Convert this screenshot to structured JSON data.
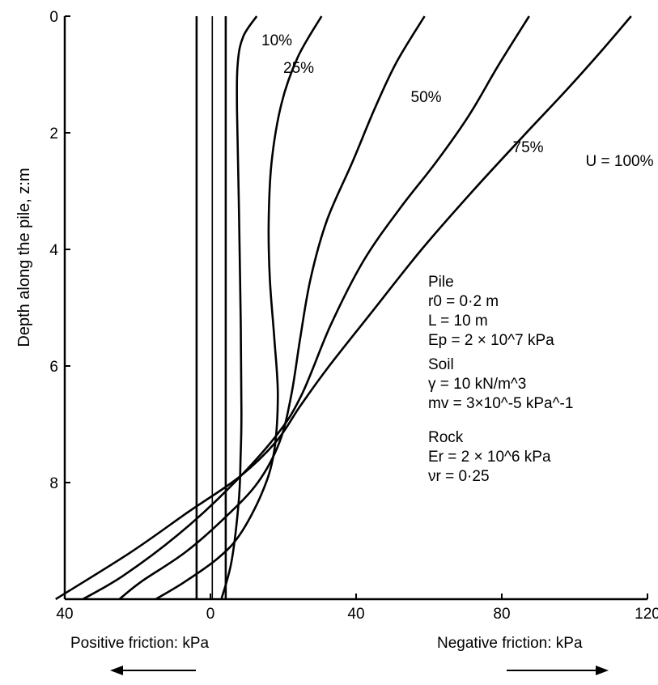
{
  "chart_data": {
    "type": "line",
    "title": "",
    "xlabel_left": "Positive friction: kPa",
    "xlabel_right": "Negative friction: kPa",
    "ylabel": "Depth along the pile, z:m",
    "xlim": [
      -40,
      120
    ],
    "ylim": [
      10,
      0
    ],
    "x_ticks": [
      -40,
      0,
      40,
      80,
      120
    ],
    "x_tick_labels": [
      "40",
      "0",
      "40",
      "80",
      "120"
    ],
    "y_ticks": [
      0,
      2,
      4,
      6,
      8
    ],
    "y_tick_labels": [
      "0",
      "2",
      "4",
      "6",
      "8"
    ],
    "grid": false,
    "series": [
      {
        "name": "10%",
        "label_x": 14,
        "label_y": 0.5,
        "x": [
          12.7,
          9,
          7.5,
          7.3,
          7.8,
          8.3,
          8.5,
          8.3,
          7.8,
          5.8,
          3
        ],
        "y": [
          0,
          0.35,
          0.8,
          1.6,
          3.2,
          5.2,
          6.8,
          7.5,
          8.3,
          9.35,
          10
        ]
      },
      {
        "name": "25%",
        "label_x": 20,
        "label_y": 0.97,
        "x": [
          30.5,
          24,
          19.5,
          16.8,
          16,
          16.3,
          17.5,
          18.5,
          17.4,
          14,
          8,
          2,
          -7,
          -15
        ],
        "y": [
          0,
          0.7,
          1.5,
          2.5,
          3.5,
          4.5,
          5.5,
          6.5,
          7.5,
          8.2,
          8.9,
          9.3,
          9.7,
          10
        ]
      },
      {
        "name": "50%",
        "label_x": 55,
        "label_y": 1.47,
        "x": [
          58.8,
          51,
          45,
          39,
          32,
          27.5,
          24.7,
          22.2,
          19,
          13,
          4,
          -7,
          -19,
          -25
        ],
        "y": [
          0,
          0.8,
          1.6,
          2.5,
          3.5,
          4.5,
          5.5,
          6.5,
          7.3,
          8.0,
          8.6,
          9.2,
          9.7,
          10
        ]
      },
      {
        "name": "75%",
        "label_x": 83,
        "label_y": 2.33,
        "x": [
          87.5,
          79,
          71,
          62,
          52,
          42,
          33,
          25,
          18,
          5,
          -9,
          -24,
          -35
        ],
        "y": [
          0,
          0.85,
          1.7,
          2.5,
          3.3,
          4.2,
          5.3,
          6.5,
          7.2,
          8.1,
          8.9,
          9.6,
          10
        ]
      },
      {
        "name": "U = 100%",
        "label_x": 103,
        "label_y": 2.57,
        "x": [
          115.5,
          108,
          98,
          86,
          72,
          58,
          44,
          32,
          24.5,
          18,
          8,
          -6,
          -22,
          -42.5
        ],
        "y": [
          0,
          0.55,
          1.25,
          2.05,
          3.0,
          4.0,
          5.1,
          6.05,
          6.7,
          7.3,
          7.9,
          8.5,
          9.2,
          10
        ]
      },
      {
        "name": "",
        "x": [
          -3.8,
          -3.8
        ],
        "y": [
          0,
          10
        ]
      },
      {
        "name": "",
        "x": [
          0.5,
          0.5
        ],
        "y": [
          0,
          10
        ]
      },
      {
        "name": "",
        "x": [
          4.2,
          4.2
        ],
        "y": [
          0,
          10
        ]
      }
    ]
  },
  "info": {
    "pile_heading": "Pile",
    "pile_r0": "r0 = 0·2 m",
    "pile_L": "L = 10 m",
    "pile_Ep": "Ep = 2 × 10^7 kPa",
    "soil_heading": "Soil",
    "soil_gamma": "γ = 10 kN/m^3",
    "soil_mv": "mv = 3×10^-5 kPa^-1",
    "rock_heading": "Rock",
    "rock_Er": "Er = 2 × 10^6 kPa",
    "rock_nu": "νr = 0·25"
  }
}
